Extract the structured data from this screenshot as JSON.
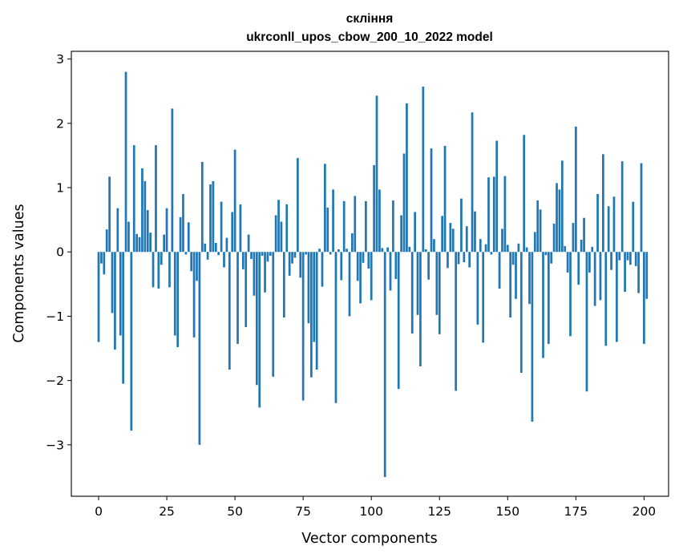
{
  "chart_data": {
    "type": "bar",
    "title_line1": "скління",
    "title_line2": "ukrconll_upos_cbow_200_10_2022 model",
    "xlabel": "Vector components",
    "ylabel": "Components values",
    "xlim": [
      -10,
      209
    ],
    "ylim": [
      -3.8,
      3.12
    ],
    "xticks": [
      0,
      25,
      50,
      75,
      100,
      125,
      150,
      175,
      200
    ],
    "xtick_labels": [
      "0",
      "25",
      "50",
      "75",
      "100",
      "125",
      "150",
      "175",
      "200"
    ],
    "yticks": [
      -3,
      -2,
      -1,
      0,
      1,
      2,
      3
    ],
    "ytick_labels": [
      "−3",
      "−2",
      "−1",
      "0",
      "1",
      "2",
      "3"
    ],
    "bar_color": "#1f77b4",
    "values": [
      -1.4,
      -0.18,
      -0.35,
      0.35,
      1.17,
      -0.95,
      -1.52,
      0.68,
      -1.3,
      -2.05,
      2.8,
      0.47,
      -2.78,
      1.66,
      0.28,
      0.23,
      1.3,
      1.1,
      0.65,
      0.3,
      -0.55,
      1.66,
      -0.57,
      -0.2,
      0.27,
      0.68,
      -0.55,
      2.23,
      -1.3,
      -1.48,
      0.54,
      0.9,
      -0.04,
      0.46,
      -0.3,
      -1.33,
      -0.45,
      -3.0,
      1.4,
      0.13,
      -0.12,
      1.05,
      1.1,
      0.14,
      -0.05,
      0.78,
      -0.24,
      0.22,
      -1.83,
      0.62,
      1.59,
      -1.43,
      0.74,
      -0.27,
      -1.17,
      0.27,
      -0.11,
      -0.68,
      -2.07,
      -2.42,
      -0.06,
      -0.63,
      -0.15,
      -0.06,
      -1.94,
      0.57,
      0.81,
      0.47,
      -1.02,
      0.74,
      -0.37,
      -0.18,
      -0.09,
      1.46,
      -0.4,
      -2.31,
      -0.04,
      -1.11,
      -1.95,
      -1.4,
      -1.83,
      0.05,
      -0.54,
      1.37,
      0.69,
      -0.04,
      0.97,
      -2.35,
      0.04,
      -0.44,
      0.79,
      0.05,
      -1.0,
      0.29,
      0.87,
      -0.45,
      -0.8,
      -0.17,
      0.79,
      -0.26,
      -0.75,
      1.35,
      2.43,
      0.97,
      0.06,
      -3.5,
      0.07,
      -0.6,
      0.8,
      -0.42,
      -2.13,
      0.57,
      1.53,
      2.31,
      0.08,
      -1.27,
      0.62,
      -0.98,
      -1.78,
      2.57,
      0.04,
      -0.43,
      1.61,
      0.2,
      -0.98,
      -1.28,
      0.56,
      1.65,
      -0.25,
      0.45,
      0.36,
      -2.16,
      -0.19,
      0.83,
      -0.16,
      0.4,
      -0.24,
      2.17,
      0.63,
      -1.13,
      0.2,
      -1.41,
      0.12,
      1.16,
      -0.04,
      1.17,
      1.73,
      -0.57,
      0.36,
      1.18,
      0.11,
      -1.02,
      -0.2,
      -0.73,
      0.13,
      -1.88,
      1.82,
      0.07,
      -0.81,
      -2.64,
      0.31,
      0.8,
      0.66,
      -1.65,
      -0.05,
      -1.43,
      -0.18,
      0.44,
      1.07,
      0.97,
      1.42,
      0.09,
      -0.32,
      -1.31,
      0.45,
      1.95,
      -0.51,
      0.19,
      0.53,
      -2.17,
      -0.32,
      0.08,
      -0.84,
      0.9,
      -0.75,
      1.52,
      -1.46,
      0.71,
      -0.28,
      0.86,
      -1.4,
      -0.13,
      1.41,
      -0.62,
      -0.13,
      -0.2,
      0.78,
      -0.22,
      -0.64,
      1.38,
      -1.43,
      -0.73
    ]
  }
}
